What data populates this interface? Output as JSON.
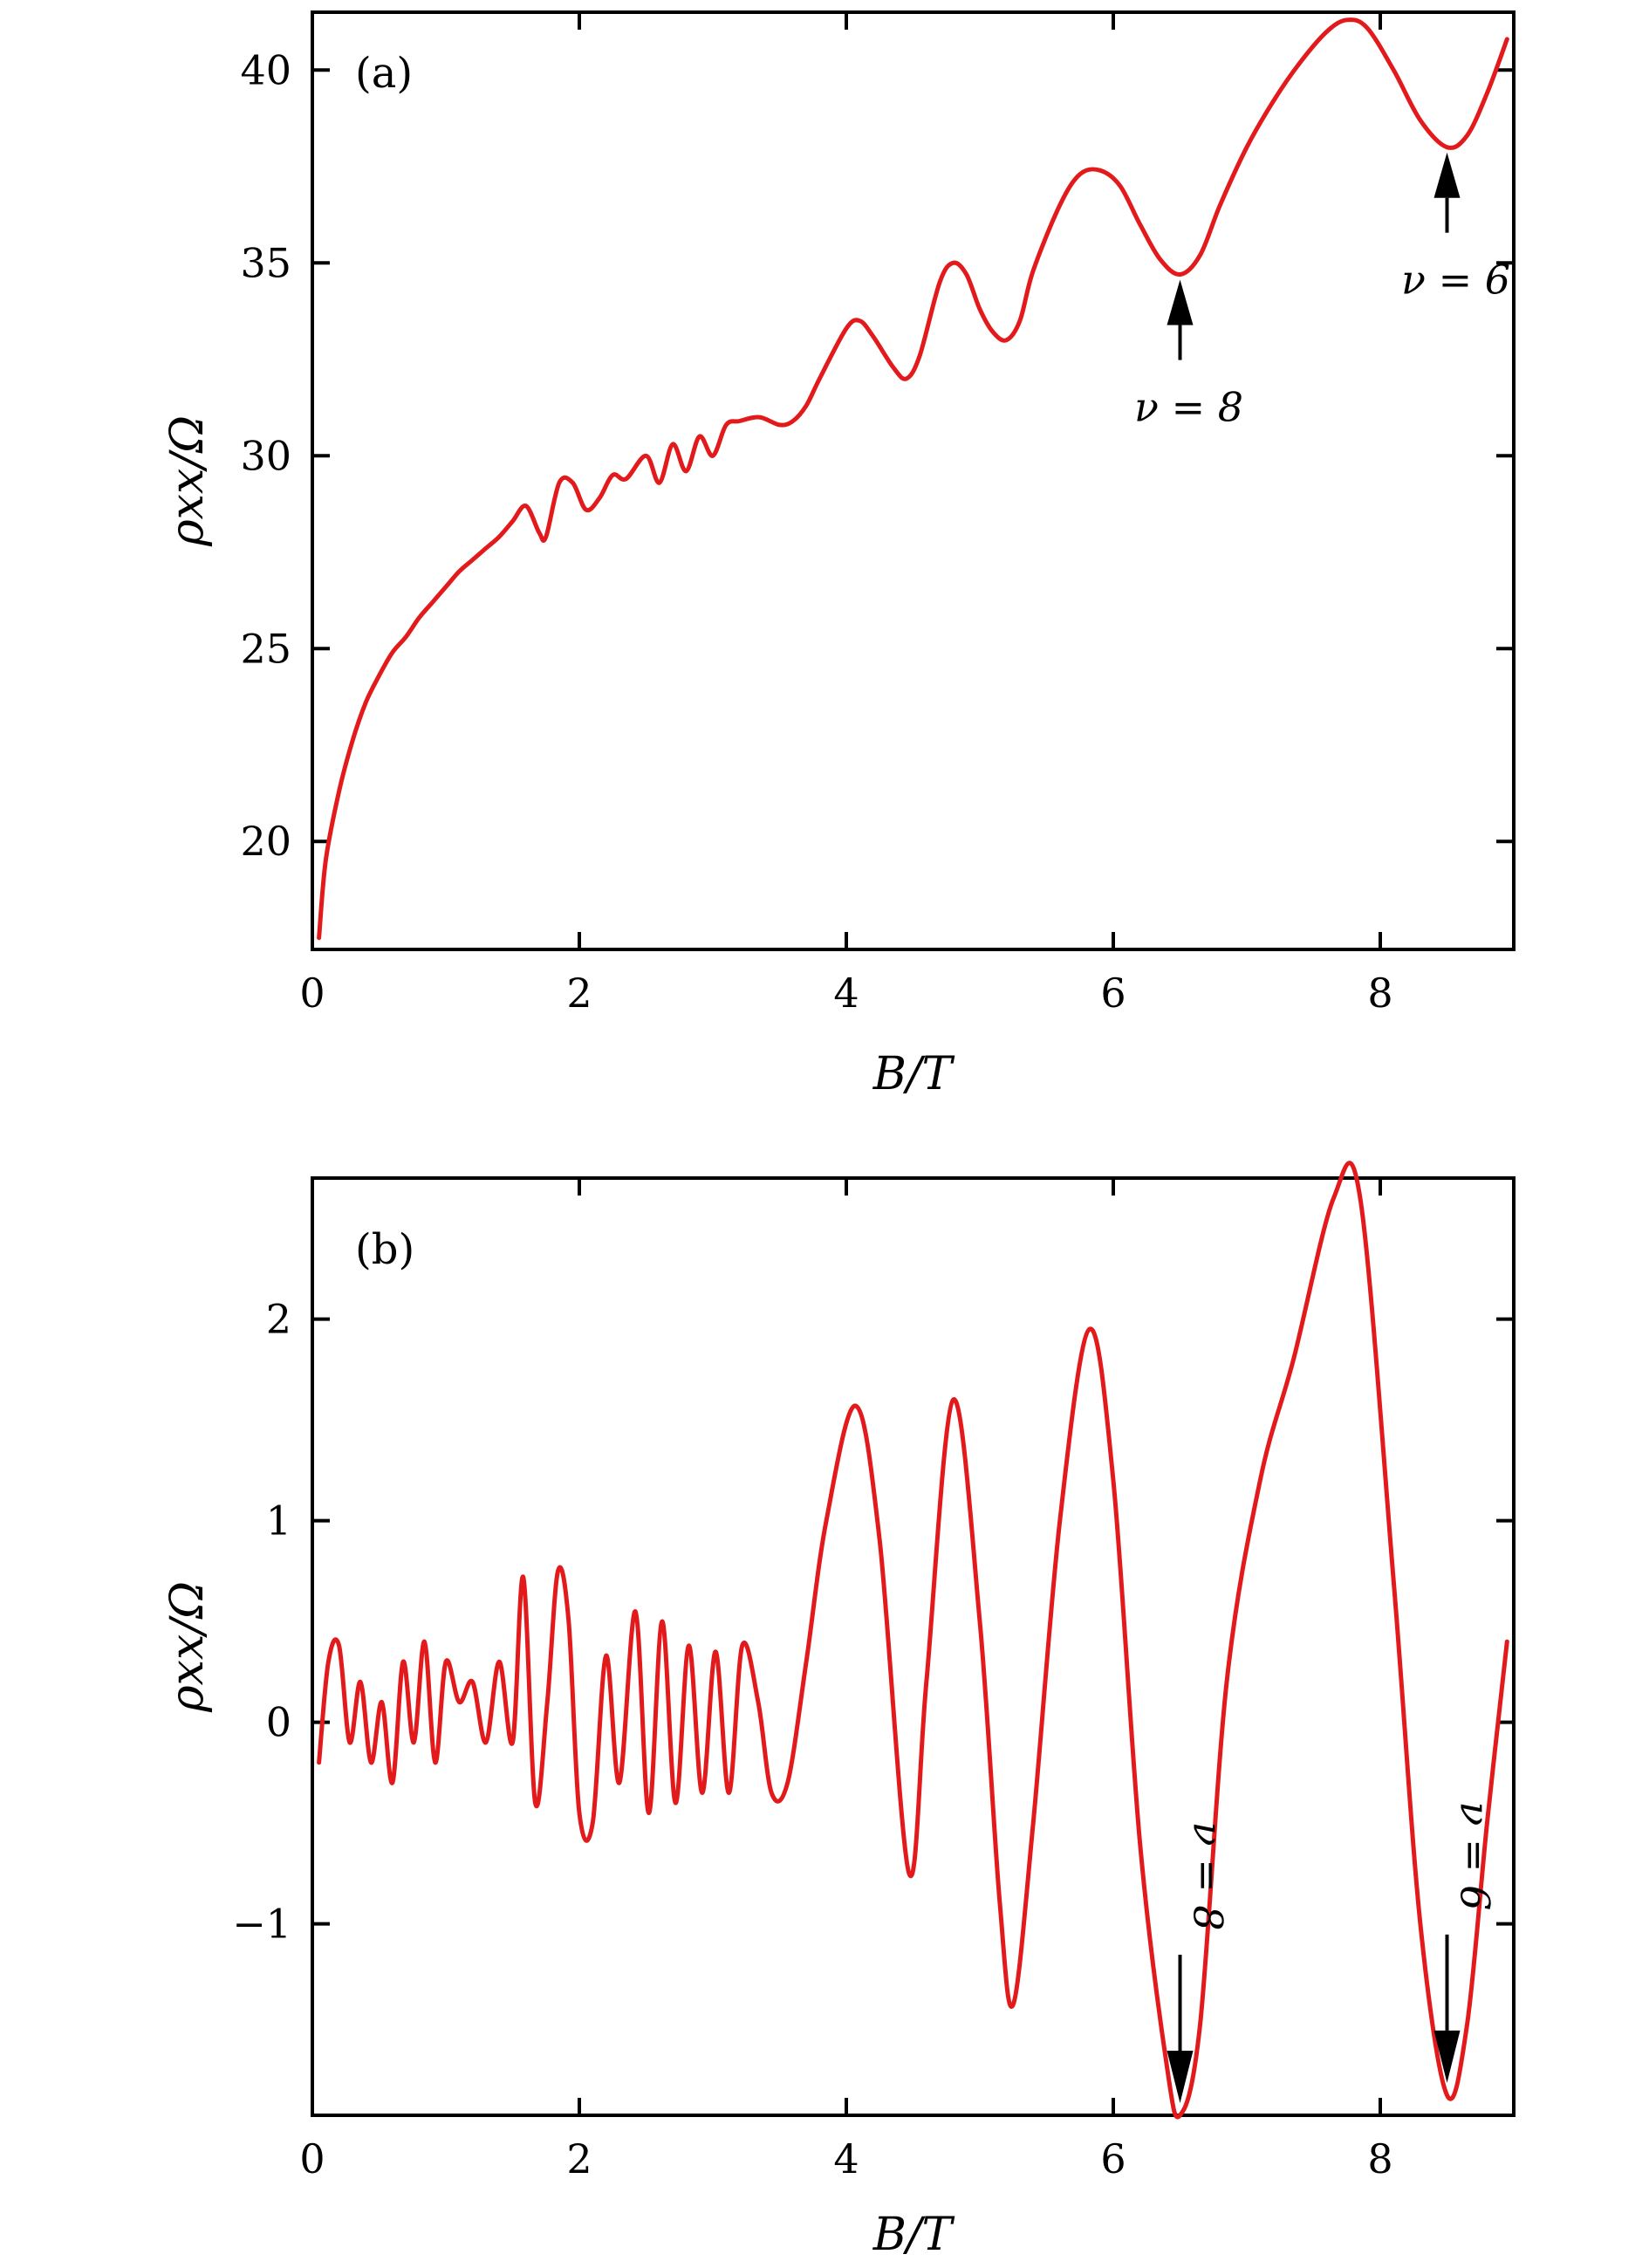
{
  "colors": {
    "curve": "#e31a1c",
    "axis": "#000000"
  },
  "chart_data": [
    {
      "type": "line",
      "panel_label": "(a)",
      "xlabel": "B/T",
      "ylabel": "ρxx/Ω",
      "xlim": [
        0,
        9
      ],
      "ylim": [
        17.2,
        41.5
      ],
      "xticks": [
        0,
        2,
        4,
        6,
        8
      ],
      "yticks": [
        20,
        25,
        30,
        35,
        40
      ],
      "grid": false,
      "series": [
        {
          "x": [
            0.05,
            0.1,
            0.2,
            0.3,
            0.4,
            0.5,
            0.6,
            0.7,
            0.8,
            0.9,
            1.0,
            1.1,
            1.2,
            1.3,
            1.4,
            1.5,
            1.6,
            1.7,
            1.75,
            1.85,
            1.95,
            2.05,
            2.15,
            2.25,
            2.35,
            2.5,
            2.6,
            2.7,
            2.8,
            2.9,
            3.0,
            3.1,
            3.2,
            3.35,
            3.5,
            3.6,
            3.7,
            3.8,
            4.0,
            4.1,
            4.2,
            4.35,
            4.45,
            4.55,
            4.7,
            4.8,
            4.9,
            5.0,
            5.1,
            5.2,
            5.3,
            5.4,
            5.6,
            5.75,
            5.9,
            6.05,
            6.2,
            6.35,
            6.5,
            6.65,
            6.8,
            7.0,
            7.2,
            7.4,
            7.6,
            7.75,
            7.9,
            8.1,
            8.3,
            8.5,
            8.65,
            8.8,
            8.95
          ],
          "y": [
            17.5,
            19.5,
            21.3,
            22.6,
            23.6,
            24.3,
            24.9,
            25.3,
            25.8,
            26.2,
            26.6,
            27.0,
            27.3,
            27.6,
            27.9,
            28.3,
            28.7,
            28.0,
            27.9,
            29.3,
            29.3,
            28.6,
            28.9,
            29.5,
            29.4,
            30.0,
            29.3,
            30.3,
            29.6,
            30.5,
            30.0,
            30.8,
            30.9,
            31.0,
            30.8,
            30.9,
            31.3,
            32.0,
            33.3,
            33.5,
            33.1,
            32.3,
            32.0,
            32.6,
            34.5,
            35.0,
            34.7,
            33.8,
            33.2,
            33.0,
            33.5,
            34.8,
            36.5,
            37.3,
            37.4,
            37.0,
            36.0,
            35.1,
            34.7,
            35.2,
            36.5,
            38.0,
            39.2,
            40.2,
            41.0,
            41.3,
            41.1,
            40.0,
            38.7,
            38.0,
            38.3,
            39.4,
            40.8
          ]
        }
      ],
      "annotations": [
        {
          "text": "ν = 8",
          "x": 6.5,
          "y": 34.7
        },
        {
          "text": "ν = 6",
          "x": 8.5,
          "y": 38.0
        }
      ]
    },
    {
      "type": "line",
      "panel_label": "(b)",
      "xlabel": "B/T",
      "ylabel": "ρxx/Ω",
      "xlim": [
        0,
        9
      ],
      "ylim": [
        -1.95,
        2.7
      ],
      "xticks": [
        0,
        2,
        4,
        6,
        8
      ],
      "yticks": [
        -1,
        0,
        1,
        2
      ],
      "grid": false,
      "series": [
        {
          "x": [
            0.05,
            0.12,
            0.2,
            0.28,
            0.36,
            0.44,
            0.52,
            0.6,
            0.68,
            0.76,
            0.84,
            0.92,
            1.0,
            1.1,
            1.2,
            1.3,
            1.4,
            1.5,
            1.58,
            1.67,
            1.76,
            1.84,
            1.92,
            2.0,
            2.1,
            2.2,
            2.3,
            2.42,
            2.52,
            2.62,
            2.72,
            2.82,
            2.92,
            3.02,
            3.12,
            3.22,
            3.34,
            3.44,
            3.56,
            3.7,
            3.85,
            4.07,
            4.25,
            4.47,
            4.6,
            4.8,
            5.0,
            5.15,
            5.25,
            5.4,
            5.6,
            5.82,
            6.0,
            6.2,
            6.4,
            6.5,
            6.65,
            6.85,
            7.1,
            7.35,
            7.65,
            7.85,
            8.1,
            8.3,
            8.5,
            8.65,
            8.8,
            8.95
          ],
          "y": [
            -0.2,
            0.3,
            0.38,
            -0.1,
            0.2,
            -0.2,
            0.1,
            -0.3,
            0.3,
            -0.1,
            0.4,
            -0.2,
            0.3,
            0.1,
            0.2,
            -0.1,
            0.3,
            -0.1,
            0.72,
            -0.4,
            0.1,
            0.75,
            0.5,
            -0.45,
            -0.5,
            0.33,
            -0.3,
            0.55,
            -0.45,
            0.5,
            -0.4,
            0.38,
            -0.35,
            0.35,
            -0.35,
            0.38,
            0.1,
            -0.35,
            -0.3,
            0.3,
            1.0,
            1.57,
            0.9,
            -0.75,
            0.2,
            1.6,
            0.5,
            -0.9,
            -1.4,
            -0.5,
            1.0,
            1.95,
            1.2,
            -0.6,
            -1.7,
            -1.95,
            -1.5,
            0.2,
            1.2,
            1.8,
            2.6,
            2.6,
            0.7,
            -1.0,
            -1.85,
            -1.5,
            -0.5,
            0.4
          ]
        }
      ],
      "annotations": [
        {
          "text": "ν = 8",
          "x": 6.5,
          "y": -1.95
        },
        {
          "text": "ν = 6",
          "x": 8.5,
          "y": -1.85
        }
      ]
    }
  ]
}
